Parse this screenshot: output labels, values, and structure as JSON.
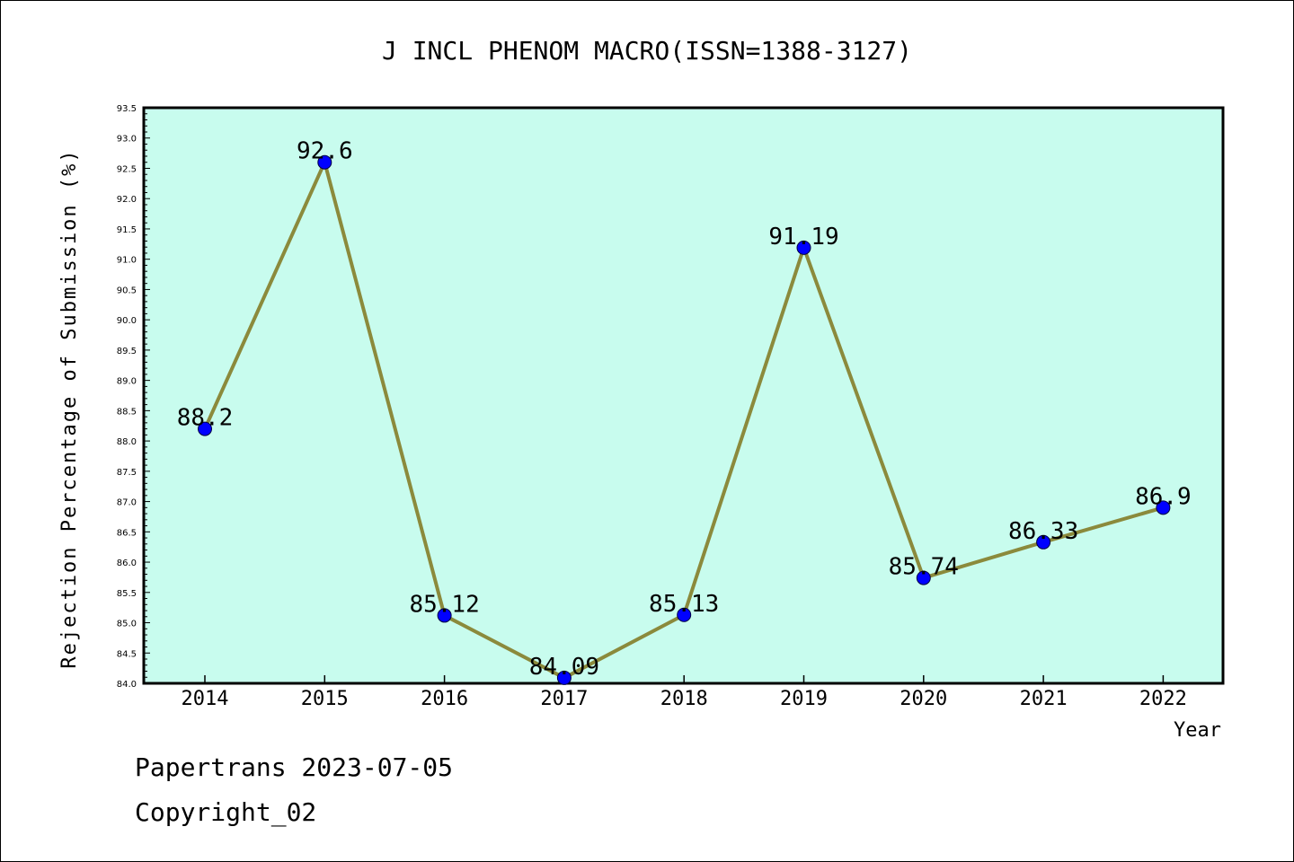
{
  "chart_data": {
    "type": "line",
    "title": "J INCL PHENOM MACRO(ISSN=1388-3127)",
    "xlabel": "Year",
    "ylabel": "Rejection Percentage of Submission (%)",
    "categories": [
      "2014",
      "2015",
      "2016",
      "2017",
      "2018",
      "2019",
      "2020",
      "2021",
      "2022"
    ],
    "values": [
      88.2,
      92.6,
      85.12,
      84.09,
      85.13,
      91.19,
      85.74,
      86.33,
      86.9
    ],
    "data_labels": [
      "88.2",
      "92.6",
      "85.12",
      "84.09",
      "85.13",
      "91.19",
      "85.74",
      "86.33",
      "86.9"
    ],
    "ylim": [
      84.0,
      93.5
    ],
    "ytick_step": 0.5,
    "grid": false,
    "colors": {
      "plot_background": "#c8fcee",
      "line": "#8b8a3c",
      "marker": "#0000ff"
    }
  },
  "footer": {
    "source": "Papertrans 2023-07-05",
    "copyright": "Copyright_02"
  }
}
